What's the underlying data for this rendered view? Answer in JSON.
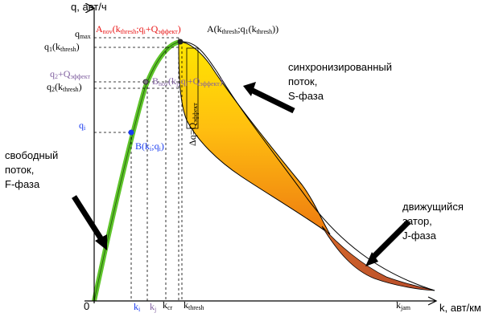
{
  "axes": {
    "y_label": "q, авт/ч",
    "x_label": "k, авт/км",
    "origin": "0"
  },
  "y_ticks": {
    "q_max": {
      "main": "q",
      "sub": "max"
    },
    "q1_kthresh": {
      "main": "q",
      "sub1": "1",
      "paren": "(k",
      "sub2": "thresh",
      "close": ")"
    },
    "q_sum": {
      "main": "q",
      "sub1": "2",
      "plus": "+Q",
      "sub2": "эффект"
    },
    "q2_kthresh": {
      "main": "q",
      "sub1": "2",
      "paren": "(k",
      "sub2": "thresh",
      "close": ")"
    },
    "q_i": {
      "main": "q",
      "sub": "i"
    }
  },
  "x_ticks": {
    "k_i": {
      "main": "k",
      "sub": "i"
    },
    "k_j": {
      "main": "k",
      "sub": "j"
    },
    "k_cr": {
      "main": "k",
      "sub": "cr"
    },
    "k_thresh": {
      "main": "k",
      "sub": "thresh"
    },
    "k_jam": {
      "main": "k",
      "sub": "jam"
    }
  },
  "points": {
    "A_nov": {
      "prefix": "A",
      "sub1": "nov",
      "mid": "(k",
      "sub2": "thresh",
      "rest": ";q",
      "sub3": "i",
      "plus": "+Q",
      "sub4": "эффект",
      "close": ")"
    },
    "A": {
      "prefix": "A(k",
      "sub1": "thresh",
      "mid": ";q",
      "sub2": "1",
      "rest": "(k",
      "sub3": "thresh",
      "close": "))"
    },
    "B_nov": {
      "prefix": "B",
      "sub1": "nov",
      "mid": "(k",
      "sub2": "j",
      "rest": ";q",
      "sub3": "i",
      "plus": "+Q",
      "sub4": "эффект",
      "close": ")"
    },
    "B": {
      "prefix": "B(k",
      "sub1": "i",
      "mid": ";q",
      "sub2": "i",
      "close": ")"
    },
    "delta_q": {
      "main": "Δq=Q",
      "sub": "эффект"
    }
  },
  "phases": {
    "free": [
      "свободный",
      "поток,",
      "F-фаза"
    ],
    "sync": [
      "синхронизированный",
      "поток,",
      "S-фаза"
    ],
    "jam": [
      "движущийся",
      "затор,",
      "J-фаза"
    ]
  },
  "colors": {
    "free_flow": "#5ec42a",
    "sync_top": "#ffd800",
    "sync_bottom": "#f28a12",
    "jam": "#c8532d",
    "red_label": "#e81616",
    "purple_label": "#8060a0",
    "blue_label": "#1a3cf0"
  }
}
